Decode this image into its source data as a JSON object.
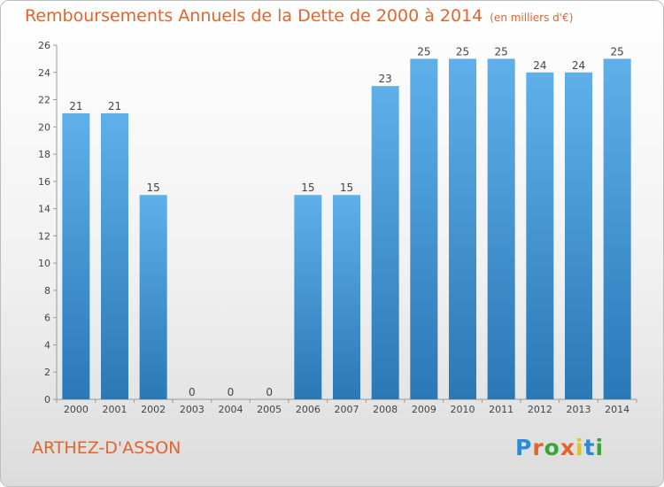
{
  "title": "Remboursements Annuels de la Dette de 2000 à 2014",
  "subtitle": "(en milliers d'€)",
  "commune": "ARTHEZ-D'ASSON",
  "logo": {
    "letters": [
      "P",
      "r",
      "o",
      "x",
      "i",
      "t",
      "i"
    ],
    "colors": [
      "#2d8bd6",
      "#e2642d",
      "#3aa43a",
      "#e2642d",
      "#d6c62d",
      "#2d8bd6",
      "#3aa43a"
    ]
  },
  "colors": {
    "bar_top": "#5fb0ea",
    "bar_bottom": "#2a78b6",
    "title": "#e2642d"
  },
  "chart_data": {
    "type": "bar",
    "title": "Remboursements Annuels de la Dette de 2000 à 2014",
    "subtitle": "(en milliers d'€)",
    "categories": [
      "2000",
      "2001",
      "2002",
      "2003",
      "2004",
      "2005",
      "2006",
      "2007",
      "2008",
      "2009",
      "2010",
      "2011",
      "2012",
      "2013",
      "2014"
    ],
    "values": [
      21,
      21,
      15,
      0,
      0,
      0,
      15,
      15,
      23,
      25,
      25,
      25,
      24,
      24,
      25
    ],
    "ylim": [
      0,
      26
    ],
    "yticks": [
      0,
      2,
      4,
      6,
      8,
      10,
      12,
      14,
      16,
      18,
      20,
      22,
      24,
      26
    ],
    "grid": false,
    "xlabel": "",
    "ylabel": ""
  }
}
